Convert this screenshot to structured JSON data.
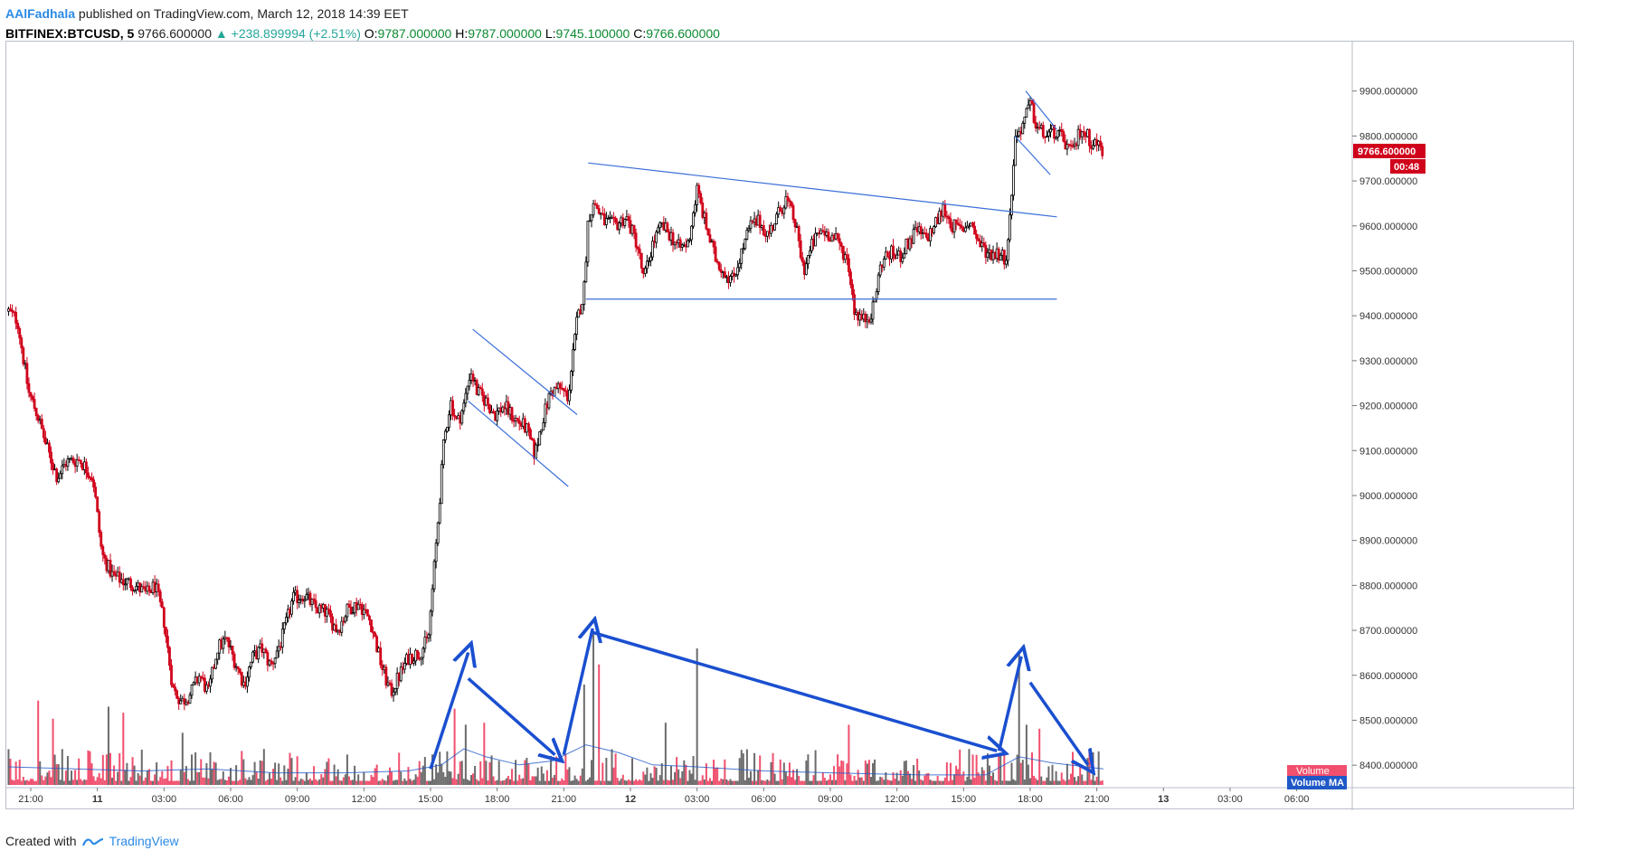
{
  "header": {
    "author": "AAlFadhala",
    "published_text": "published on TradingView.com, March 12, 2018 14:39 EET",
    "symbol": "BITFINEX:BTCUSD, 5",
    "last": "9766.600000",
    "change": "▲ +238.899994 (+2.51%)",
    "o_label": "O:",
    "o_value": "9787.000000",
    "h_label": "H:",
    "h_value": "9787.000000",
    "l_label": "L:",
    "l_value": "9745.100000",
    "c_label": "C:",
    "c_value": "9766.600000"
  },
  "footer": {
    "created_with": "Created with",
    "brand": "TradingView"
  },
  "colors": {
    "up": "#000000",
    "down": "#d0021b",
    "vol_up": "#6b6b6b",
    "vol_down": "#f0506e",
    "trendline": "#3b6fd8",
    "arrow": "#1a4fd0",
    "price_tag": "#d0021b",
    "volume_ma": "#1f58c7"
  },
  "chart_data": {
    "type": "candlestick",
    "symbol": "BITFINEX:BTCUSD",
    "interval": "5",
    "y_ticks": [
      "9900.000000",
      "9800.000000",
      "9700.000000",
      "9600.000000",
      "9500.000000",
      "9400.000000",
      "9300.000000",
      "9200.000000",
      "9100.000000",
      "9000.000000",
      "8900.000000",
      "8800.000000",
      "8700.000000",
      "8600.000000",
      "8500.000000",
      "8400.000000"
    ],
    "y_tick_values": [
      9900,
      9800,
      9700,
      9600,
      9500,
      9400,
      9300,
      9200,
      9100,
      9000,
      8900,
      8800,
      8700,
      8600,
      8500,
      8400
    ],
    "ylim": [
      8350,
      10010
    ],
    "x_ticks": [
      "21:00",
      "11",
      "03:00",
      "06:00",
      "09:00",
      "12:00",
      "15:00",
      "18:00",
      "21:00",
      "12",
      "03:00",
      "06:00",
      "09:00",
      "12:00",
      "15:00",
      "18:00",
      "21:00",
      "13",
      "03:00",
      "06:00"
    ],
    "x_tick_hours": [
      0,
      3,
      6,
      9,
      12,
      15,
      18,
      21,
      24,
      27,
      30,
      33,
      36,
      39,
      42,
      45,
      48,
      51,
      54,
      57
    ],
    "xlim_hours": [
      -1.1,
      59.5
    ],
    "bold_x_ticks": [
      "11",
      "12",
      "13"
    ],
    "price_anchors": [
      {
        "t": -1.0,
        "p": 9410
      },
      {
        "t": -0.6,
        "p": 9390
      },
      {
        "t": -0.1,
        "p": 9230
      },
      {
        "t": 0.3,
        "p": 9180
      },
      {
        "t": 0.7,
        "p": 9110
      },
      {
        "t": 1.2,
        "p": 9040
      },
      {
        "t": 1.6,
        "p": 9075
      },
      {
        "t": 2.2,
        "p": 9080
      },
      {
        "t": 2.8,
        "p": 9040
      },
      {
        "t": 3.2,
        "p": 8870
      },
      {
        "t": 3.7,
        "p": 8820
      },
      {
        "t": 4.2,
        "p": 8810
      },
      {
        "t": 4.7,
        "p": 8800
      },
      {
        "t": 5.2,
        "p": 8780
      },
      {
        "t": 5.6,
        "p": 8800
      },
      {
        "t": 6.0,
        "p": 8720
      },
      {
        "t": 6.4,
        "p": 8570
      },
      {
        "t": 6.8,
        "p": 8540
      },
      {
        "t": 7.2,
        "p": 8560
      },
      {
        "t": 7.6,
        "p": 8600
      },
      {
        "t": 8.0,
        "p": 8560
      },
      {
        "t": 8.4,
        "p": 8660
      },
      {
        "t": 8.8,
        "p": 8680
      },
      {
        "t": 9.2,
        "p": 8630
      },
      {
        "t": 9.6,
        "p": 8580
      },
      {
        "t": 10.0,
        "p": 8640
      },
      {
        "t": 10.4,
        "p": 8660
      },
      {
        "t": 10.8,
        "p": 8620
      },
      {
        "t": 11.3,
        "p": 8680
      },
      {
        "t": 11.8,
        "p": 8770
      },
      {
        "t": 12.3,
        "p": 8780
      },
      {
        "t": 12.8,
        "p": 8750
      },
      {
        "t": 13.3,
        "p": 8740
      },
      {
        "t": 13.8,
        "p": 8700
      },
      {
        "t": 14.3,
        "p": 8750
      },
      {
        "t": 14.8,
        "p": 8760
      },
      {
        "t": 15.3,
        "p": 8720
      },
      {
        "t": 15.8,
        "p": 8620
      },
      {
        "t": 16.2,
        "p": 8560
      },
      {
        "t": 16.6,
        "p": 8600
      },
      {
        "t": 17.0,
        "p": 8640
      },
      {
        "t": 17.5,
        "p": 8650
      },
      {
        "t": 17.9,
        "p": 8680
      },
      {
        "t": 18.3,
        "p": 8920
      },
      {
        "t": 18.6,
        "p": 9120
      },
      {
        "t": 18.9,
        "p": 9210
      },
      {
        "t": 19.2,
        "p": 9160
      },
      {
        "t": 19.5,
        "p": 9200
      },
      {
        "t": 19.8,
        "p": 9280
      },
      {
        "t": 20.1,
        "p": 9230
      },
      {
        "t": 20.5,
        "p": 9210
      },
      {
        "t": 20.9,
        "p": 9180
      },
      {
        "t": 21.3,
        "p": 9200
      },
      {
        "t": 21.8,
        "p": 9170
      },
      {
        "t": 22.3,
        "p": 9150
      },
      {
        "t": 22.7,
        "p": 9090
      },
      {
        "t": 23.0,
        "p": 9160
      },
      {
        "t": 23.4,
        "p": 9230
      },
      {
        "t": 23.8,
        "p": 9240
      },
      {
        "t": 24.2,
        "p": 9220
      },
      {
        "t": 24.6,
        "p": 9390
      },
      {
        "t": 24.9,
        "p": 9450
      },
      {
        "t": 25.1,
        "p": 9620
      },
      {
        "t": 25.4,
        "p": 9650
      },
      {
        "t": 25.8,
        "p": 9610
      },
      {
        "t": 26.3,
        "p": 9600
      },
      {
        "t": 26.8,
        "p": 9620
      },
      {
        "t": 27.3,
        "p": 9560
      },
      {
        "t": 27.6,
        "p": 9480
      },
      {
        "t": 28.0,
        "p": 9560
      },
      {
        "t": 28.4,
        "p": 9600
      },
      {
        "t": 28.8,
        "p": 9580
      },
      {
        "t": 29.2,
        "p": 9550
      },
      {
        "t": 29.6,
        "p": 9560
      },
      {
        "t": 30.0,
        "p": 9680
      },
      {
        "t": 30.4,
        "p": 9600
      },
      {
        "t": 30.8,
        "p": 9530
      },
      {
        "t": 31.2,
        "p": 9500
      },
      {
        "t": 31.6,
        "p": 9480
      },
      {
        "t": 32.0,
        "p": 9540
      },
      {
        "t": 32.4,
        "p": 9600
      },
      {
        "t": 32.8,
        "p": 9610
      },
      {
        "t": 33.2,
        "p": 9580
      },
      {
        "t": 33.6,
        "p": 9620
      },
      {
        "t": 34.0,
        "p": 9660
      },
      {
        "t": 34.4,
        "p": 9610
      },
      {
        "t": 34.8,
        "p": 9500
      },
      {
        "t": 35.2,
        "p": 9560
      },
      {
        "t": 35.6,
        "p": 9590
      },
      {
        "t": 36.0,
        "p": 9580
      },
      {
        "t": 36.4,
        "p": 9560
      },
      {
        "t": 36.8,
        "p": 9520
      },
      {
        "t": 37.1,
        "p": 9410
      },
      {
        "t": 37.5,
        "p": 9390
      },
      {
        "t": 37.9,
        "p": 9410
      },
      {
        "t": 38.3,
        "p": 9520
      },
      {
        "t": 38.7,
        "p": 9540
      },
      {
        "t": 39.1,
        "p": 9530
      },
      {
        "t": 39.5,
        "p": 9560
      },
      {
        "t": 39.9,
        "p": 9590
      },
      {
        "t": 40.3,
        "p": 9570
      },
      {
        "t": 40.7,
        "p": 9600
      },
      {
        "t": 41.1,
        "p": 9640
      },
      {
        "t": 41.5,
        "p": 9600
      },
      {
        "t": 41.9,
        "p": 9590
      },
      {
        "t": 42.3,
        "p": 9610
      },
      {
        "t": 42.7,
        "p": 9560
      },
      {
        "t": 43.1,
        "p": 9540
      },
      {
        "t": 43.5,
        "p": 9540
      },
      {
        "t": 43.9,
        "p": 9530
      },
      {
        "t": 44.1,
        "p": 9620
      },
      {
        "t": 44.3,
        "p": 9790
      },
      {
        "t": 44.7,
        "p": 9830
      },
      {
        "t": 45.0,
        "p": 9870
      },
      {
        "t": 45.3,
        "p": 9820
      },
      {
        "t": 45.7,
        "p": 9800
      },
      {
        "t": 46.1,
        "p": 9810
      },
      {
        "t": 46.5,
        "p": 9790
      },
      {
        "t": 46.9,
        "p": 9760
      },
      {
        "t": 47.3,
        "p": 9820
      },
      {
        "t": 47.7,
        "p": 9790
      },
      {
        "t": 48.1,
        "p": 9780
      },
      {
        "t": 48.3,
        "p": 9766.6
      }
    ],
    "volume_ma_points": [
      {
        "t": -1.0,
        "v": 0.09
      },
      {
        "t": 2.0,
        "v": 0.08
      },
      {
        "t": 5.0,
        "v": 0.07
      },
      {
        "t": 8.0,
        "v": 0.08
      },
      {
        "t": 11.0,
        "v": 0.06
      },
      {
        "t": 14.0,
        "v": 0.06
      },
      {
        "t": 17.0,
        "v": 0.07
      },
      {
        "t": 18.5,
        "v": 0.1
      },
      {
        "t": 19.5,
        "v": 0.18
      },
      {
        "t": 20.5,
        "v": 0.14
      },
      {
        "t": 22.0,
        "v": 0.1
      },
      {
        "t": 23.5,
        "v": 0.12
      },
      {
        "t": 25.0,
        "v": 0.2
      },
      {
        "t": 26.5,
        "v": 0.16
      },
      {
        "t": 28.0,
        "v": 0.1
      },
      {
        "t": 30.0,
        "v": 0.09
      },
      {
        "t": 33.0,
        "v": 0.07
      },
      {
        "t": 36.0,
        "v": 0.06
      },
      {
        "t": 40.0,
        "v": 0.05
      },
      {
        "t": 43.0,
        "v": 0.05
      },
      {
        "t": 44.5,
        "v": 0.14
      },
      {
        "t": 46.0,
        "v": 0.11
      },
      {
        "t": 48.3,
        "v": 0.08
      }
    ],
    "volume_spikes": [
      {
        "t": 0.3,
        "v": 0.42
      },
      {
        "t": 1.0,
        "v": 0.33
      },
      {
        "t": 3.5,
        "v": 0.39
      },
      {
        "t": 4.2,
        "v": 0.36
      },
      {
        "t": 6.8,
        "v": 0.26
      },
      {
        "t": 19.1,
        "v": 0.38
      },
      {
        "t": 19.6,
        "v": 0.3
      },
      {
        "t": 20.4,
        "v": 0.31
      },
      {
        "t": 24.9,
        "v": 0.5
      },
      {
        "t": 25.3,
        "v": 0.75
      },
      {
        "t": 25.6,
        "v": 0.6
      },
      {
        "t": 30.0,
        "v": 0.68
      },
      {
        "t": 28.6,
        "v": 0.31
      },
      {
        "t": 36.8,
        "v": 0.3
      },
      {
        "t": 44.5,
        "v": 0.66
      },
      {
        "t": 44.8,
        "v": 0.3
      },
      {
        "t": 45.4,
        "v": 0.28
      }
    ],
    "trendlines": [
      {
        "name": "flag-upper",
        "t1": 19.9,
        "p1": 9370,
        "t2": 24.6,
        "p2": 9180
      },
      {
        "name": "flag-lower",
        "t1": 19.7,
        "p1": 9210,
        "t2": 24.2,
        "p2": 9020
      },
      {
        "name": "range-upper",
        "t1": 25.1,
        "p1": 9740,
        "t2": 46.2,
        "p2": 9620
      },
      {
        "name": "range-support",
        "t1": 25.0,
        "p1": 9437,
        "t2": 46.2,
        "p2": 9437
      },
      {
        "name": "pennant-upper",
        "t1": 44.8,
        "p1": 9900,
        "t2": 46.2,
        "p2": 9814
      },
      {
        "name": "pennant-lower",
        "t1": 44.3,
        "p1": 9800,
        "t2": 45.9,
        "p2": 9714
      }
    ],
    "volume_arrows": [
      {
        "name": "arrow-1",
        "t1": 18.0,
        "v1": 0.08,
        "t2": 19.7,
        "v2": 0.66
      },
      {
        "name": "arrow-2",
        "t1": 19.7,
        "v1": 0.53,
        "t2": 23.6,
        "v2": 0.15
      },
      {
        "name": "arrow-3",
        "t1": 24.0,
        "v1": 0.15,
        "t2": 25.3,
        "v2": 0.78
      },
      {
        "name": "arrow-4",
        "t1": 25.3,
        "v1": 0.76,
        "t2": 43.5,
        "v2": 0.17
      },
      {
        "name": "arrow-5",
        "t1": 43.6,
        "v1": 0.17,
        "t2": 44.6,
        "v2": 0.64
      },
      {
        "name": "arrow-6",
        "t1": 45.0,
        "v1": 0.51,
        "t2": 47.6,
        "v2": 0.1
      }
    ],
    "last_price_label": "9766.600000",
    "countdown": "00:48",
    "volume_legend": [
      "Volume",
      "Volume MA"
    ]
  }
}
